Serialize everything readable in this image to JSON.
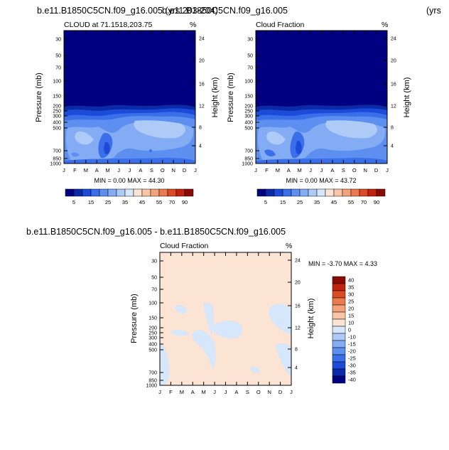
{
  "titles": {
    "top_left": "b.e11.B1850C5CN.f09_g16.005 (yrs 203-204)",
    "top_overlap": "b.e11.B1850C5CN.f09_g16.005",
    "top_right_clip": "(yrs",
    "diff": "b.e11.B1850C5CN.f09_g16.005 - b.e11.B1850C5CN.f09_g16.005"
  },
  "colors": {
    "bg": "#ffffff",
    "abs_scale": [
      "#000080",
      "#0a2aa8",
      "#1b4bd8",
      "#3b6fea",
      "#5d8ff0",
      "#84acf4",
      "#aecbf8",
      "#d6e6fb",
      "#fbe4d4",
      "#f8c6a4",
      "#f4a27a",
      "#ec7a50",
      "#dc4a26",
      "#c02410",
      "#8a0a06"
    ],
    "diff_scale": [
      "#000080",
      "#0a2aa8",
      "#1b4bd8",
      "#3b6fea",
      "#5d8ff0",
      "#84acf4",
      "#aecbf8",
      "#d6e6fb",
      "#fbe4d4",
      "#f8c6a4",
      "#f4a27a",
      "#ec7a50",
      "#dc4a26",
      "#c02410",
      "#8a0a06"
    ]
  },
  "chart_data": [
    {
      "type": "heatmap",
      "id": "model1",
      "title": "CLOUD at 71.1518,203.75",
      "unit_label": "%",
      "x": [
        "J",
        "F",
        "M",
        "A",
        "M",
        "J",
        "J",
        "A",
        "S",
        "O",
        "N",
        "D",
        "J"
      ],
      "ylabel": "Pressure (mb)",
      "yticks": [
        "30",
        "50",
        "70",
        "100",
        "150",
        "200",
        "250",
        "300",
        "400",
        "500",
        "700",
        "850",
        "1000"
      ],
      "ylabel_right": "Height (km)",
      "yticks_right": [
        "24",
        "20",
        "16",
        "12",
        "8",
        "4"
      ],
      "stats": "MIN = 0.00 MAX = 44.30",
      "colorbar_labels": [
        "5",
        "15",
        "25",
        "35",
        "45",
        "55",
        "70",
        "90"
      ]
    },
    {
      "type": "heatmap",
      "id": "model2",
      "title": "Cloud Fraction",
      "unit_label": "%",
      "x": [
        "J",
        "F",
        "M",
        "A",
        "M",
        "J",
        "J",
        "A",
        "S",
        "O",
        "N",
        "D",
        "J"
      ],
      "ylabel": "Pressure (mb)",
      "yticks": [
        "30",
        "50",
        "70",
        "100",
        "150",
        "200",
        "250",
        "300",
        "400",
        "500",
        "700",
        "850",
        "1000"
      ],
      "ylabel_right": "Height (km)",
      "yticks_right": [
        "24",
        "20",
        "16",
        "12",
        "8",
        "4"
      ],
      "stats": "MIN = 0.00 MAX = 43.72",
      "colorbar_labels": [
        "5",
        "15",
        "25",
        "35",
        "45",
        "55",
        "70",
        "90"
      ]
    },
    {
      "type": "heatmap",
      "id": "difference",
      "title": "Cloud Fraction",
      "unit_label": "%",
      "x": [
        "J",
        "F",
        "M",
        "A",
        "M",
        "J",
        "J",
        "A",
        "S",
        "O",
        "N",
        "D",
        "J"
      ],
      "ylabel": "Pressure (mb)",
      "yticks": [
        "30",
        "50",
        "70",
        "100",
        "150",
        "200",
        "250",
        "300",
        "400",
        "500",
        "700",
        "850",
        "1000"
      ],
      "ylabel_right": "Height (km)",
      "yticks_right": [
        "24",
        "20",
        "16",
        "12",
        "8",
        "4"
      ],
      "stats": "MIN = -3.70 MAX = 4.33",
      "colorbar_labels": [
        "40",
        "35",
        "30",
        "25",
        "20",
        "15",
        "10",
        "0",
        "-10",
        "-15",
        "-20",
        "-25",
        "-30",
        "-35",
        "-40"
      ]
    }
  ]
}
